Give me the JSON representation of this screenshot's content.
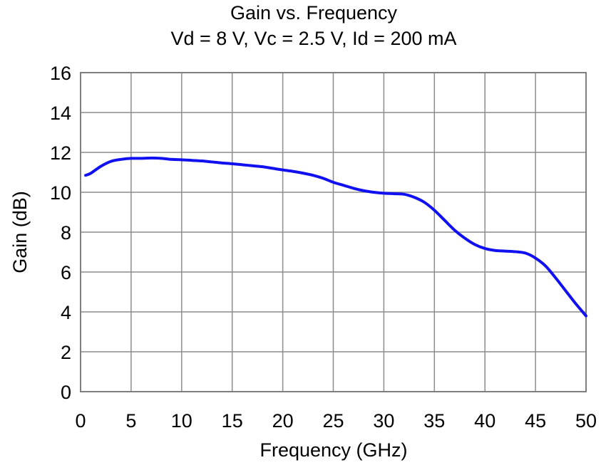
{
  "chart_data": {
    "type": "line",
    "title": "Gain vs. Frequency",
    "subtitle": "Vd = 8 V, Vc = 2.5 V, Id = 200 mA",
    "xlabel": "Frequency (GHz)",
    "ylabel": "Gain (dB)",
    "xlim": [
      0,
      50
    ],
    "ylim": [
      0,
      16
    ],
    "xticks": [
      "0",
      "5",
      "10",
      "15",
      "20",
      "25",
      "30",
      "35",
      "40",
      "45",
      "50"
    ],
    "yticks": [
      "0",
      "2",
      "4",
      "6",
      "8",
      "10",
      "12",
      "14",
      "16"
    ],
    "grid": true,
    "legend": "none",
    "series": [
      {
        "color": "#1010f0",
        "x": [
          0.5,
          1,
          2,
          3,
          4,
          5,
          6,
          7,
          8,
          9,
          10,
          11,
          12,
          13,
          14,
          15,
          16,
          17,
          18,
          19,
          20,
          21,
          22,
          23,
          24,
          25,
          26,
          27,
          28,
          29,
          30,
          31,
          32,
          33,
          34,
          35,
          36,
          37,
          38,
          39,
          40,
          41,
          42,
          43,
          44,
          45,
          46,
          47,
          48,
          49,
          50
        ],
        "y": [
          10.85,
          10.95,
          11.3,
          11.55,
          11.65,
          11.7,
          11.7,
          11.72,
          11.7,
          11.65,
          11.63,
          11.6,
          11.57,
          11.52,
          11.47,
          11.43,
          11.38,
          11.33,
          11.28,
          11.2,
          11.12,
          11.05,
          10.96,
          10.85,
          10.7,
          10.5,
          10.35,
          10.2,
          10.08,
          10.0,
          9.95,
          9.93,
          9.9,
          9.75,
          9.5,
          9.1,
          8.6,
          8.1,
          7.7,
          7.38,
          7.18,
          7.08,
          7.05,
          7.02,
          6.95,
          6.7,
          6.3,
          5.7,
          5.05,
          4.4,
          3.8
        ]
      }
    ]
  }
}
